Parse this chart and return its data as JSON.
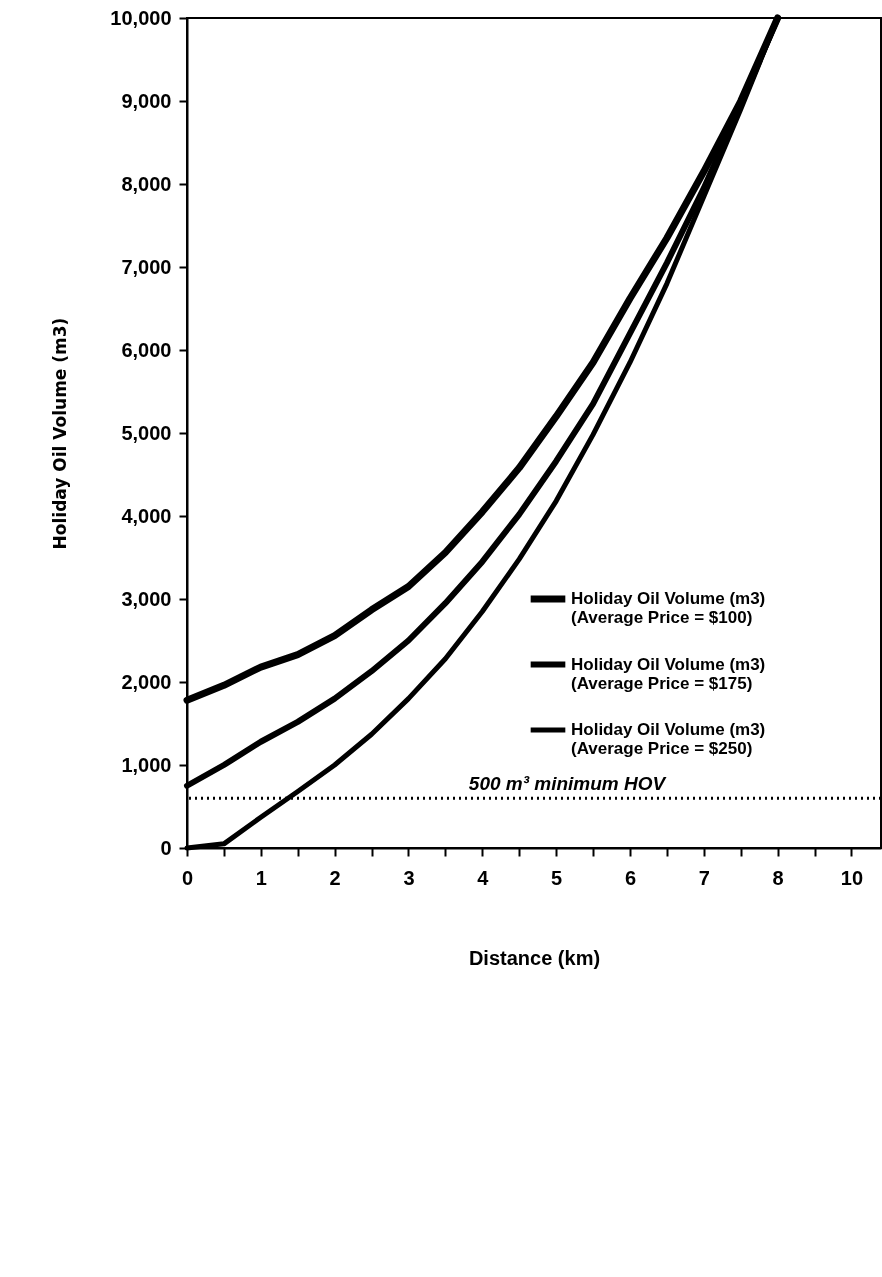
{
  "chart_data": {
    "type": "line",
    "xlabel": "Distance (km)",
    "ylabel": "Holiday Oil Volume (m3)",
    "categories": [
      "0",
      null,
      "1",
      null,
      "2",
      null,
      "3",
      null,
      "4",
      null,
      "5",
      null,
      "6",
      null,
      "7",
      null,
      "8",
      null,
      "10"
    ],
    "series": [
      {
        "name": "Holiday Oil Volume (m3) (Average Price = $100)",
        "color": "#000000",
        "values": [
          1780,
          1960,
          2180,
          2330,
          2560,
          2870,
          3150,
          3560,
          4050,
          4580,
          5200,
          5850,
          6620,
          7350,
          8150,
          9000,
          10000,
          null,
          null
        ]
      },
      {
        "name": "Holiday Oil Volume (m3) (Average Price = $175)",
        "color": "#000000",
        "values": [
          750,
          1000,
          1280,
          1520,
          1800,
          2130,
          2500,
          2950,
          3450,
          4020,
          4660,
          5350,
          6200,
          7050,
          7950,
          8950,
          10000,
          null,
          null
        ]
      },
      {
        "name": "Holiday Oil Volume (m3) (Average Price = $250)",
        "color": "#000000",
        "values": [
          0,
          50,
          370,
          680,
          1000,
          1370,
          1800,
          2280,
          2850,
          3480,
          4180,
          4980,
          5850,
          6800,
          7850,
          8900,
          10000,
          null,
          null
        ]
      }
    ],
    "ylim": [
      0,
      10000
    ],
    "yticks": [
      0,
      {
        "value": 1000,
        "label": "1,000"
      },
      {
        "value": 2000,
        "label": "2,000"
      },
      {
        "value": 3000,
        "label": "3,000"
      },
      {
        "value": 4000,
        "label": "4,000"
      },
      {
        "value": 5000,
        "label": "5,000"
      },
      {
        "value": 6000,
        "label": "6,000"
      },
      {
        "value": 7000,
        "label": "7,000"
      },
      {
        "value": 8000,
        "label": "8,000"
      },
      {
        "value": 9000,
        "label": "9,000"
      },
      {
        "value": 10000,
        "label": "10,000"
      }
    ],
    "ref_lines": [
      {
        "axis": "y",
        "value": 600,
        "label": "500 m³ minimum HOV",
        "line_style": "dotted"
      }
    ],
    "legend": "bottom right",
    "grid": false,
    "marker": "none",
    "line_style": "solid"
  }
}
